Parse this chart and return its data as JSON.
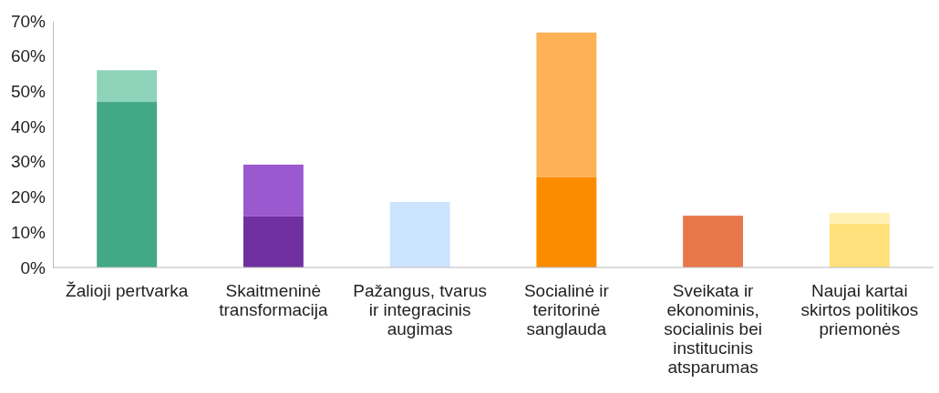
{
  "chart_data": {
    "type": "bar",
    "stacked": true,
    "categories": [
      "Žalioji pertvarka",
      "Skaitmeninė transformacija",
      "Pažangus, tvarus ir integracinis augimas",
      "Socialinė ir teritorinė sanglauda",
      "Sveikata ir ekonominis, socialinis bei institucinis atsparumas",
      "Naujai kartai skirtos politikos priemonės"
    ],
    "series": [
      {
        "colors": [
          "#43a886",
          "#7030a0",
          "#cce4ff",
          "#fb8c00",
          "#e8784a",
          "#ffe07a"
        ],
        "values": [
          47,
          14.5,
          18.6,
          25.6,
          14.7,
          12.4
        ]
      },
      {
        "colors": [
          "#8dd4bb",
          "#9b59cf",
          null,
          "#ffb155",
          null,
          "#fff0b3"
        ],
        "values": [
          9,
          14.7,
          null,
          41.1,
          null,
          3.1
        ]
      }
    ],
    "ylim": [
      0,
      70
    ],
    "yticks": [
      {
        "value": 0,
        "label": "0%"
      },
      {
        "value": 10,
        "label": "10%"
      },
      {
        "value": 20,
        "label": "20%"
      },
      {
        "value": 30,
        "label": "30%"
      },
      {
        "value": 40,
        "label": "40%"
      },
      {
        "value": 50,
        "label": "50%"
      },
      {
        "value": 60,
        "label": "60%"
      },
      {
        "value": 70,
        "label": "70%"
      }
    ],
    "grid": false
  }
}
